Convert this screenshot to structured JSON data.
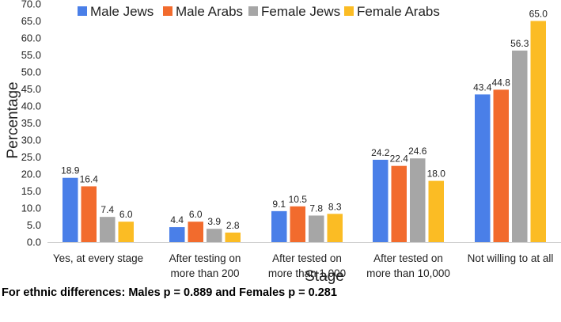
{
  "chart_data": {
    "type": "bar",
    "xlabel": "Stage",
    "ylabel": "Percentage",
    "ylim": [
      0,
      70
    ],
    "ytick_step": 5,
    "grid": false,
    "legend_position": "top",
    "categories": [
      [
        "Yes, at every stage"
      ],
      [
        "After testing on",
        "more than 200"
      ],
      [
        "After tested on",
        "more than 1,000"
      ],
      [
        "After tested on",
        "more than 10,000"
      ],
      [
        "Not willing to at all"
      ]
    ],
    "series": [
      {
        "name": "Male Jews",
        "color": "#4a7fe8",
        "values": [
          18.9,
          4.4,
          9.1,
          24.2,
          43.4
        ]
      },
      {
        "name": "Male Arabs",
        "color": "#f26b2d",
        "values": [
          16.4,
          6.0,
          10.5,
          22.4,
          44.8
        ]
      },
      {
        "name": "Female Jews",
        "color": "#a6a6a6",
        "values": [
          7.4,
          3.9,
          7.8,
          24.6,
          56.3
        ]
      },
      {
        "name": "Female Arabs",
        "color": "#fbbc24",
        "values": [
          6.0,
          2.8,
          8.3,
          18.0,
          65.0
        ]
      }
    ]
  },
  "footnote": "For ethnic differences: Males p = 0.889 and Females p = 0.281"
}
